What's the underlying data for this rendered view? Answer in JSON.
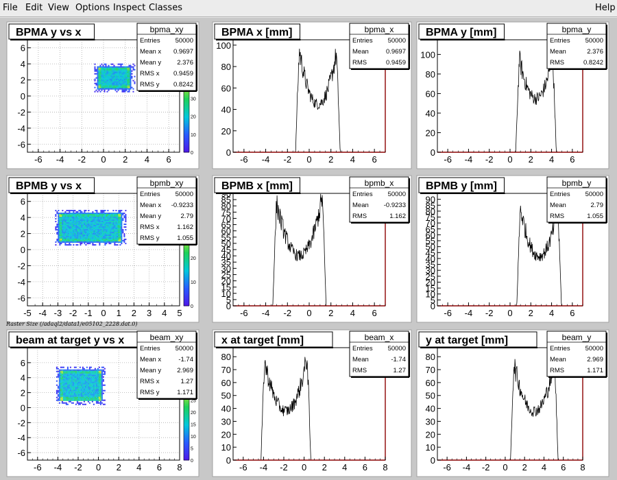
{
  "menu": {
    "file": "File",
    "edit": "Edit",
    "view": "View",
    "options": "Options",
    "inspect": "Inspect",
    "classes": "Classes",
    "help": "Help"
  },
  "caption": "Raster Size (/adaql2/data1/e05102_2228.dat.0)",
  "colors": {
    "pad_bg": "#ffffff",
    "frame": "#c8c8c8",
    "axis_red": "#8b0000",
    "hist_line": "#000000"
  },
  "chart_data": [
    {
      "type": "heatmap",
      "title": "BPMA y vs x",
      "stats_name": "bpma_xy",
      "stats": [
        [
          "Entries",
          "50000"
        ],
        [
          "Mean x",
          "0.9697"
        ],
        [
          "Mean y",
          "2.376"
        ],
        [
          "RMS x",
          "0.9459"
        ],
        [
          "RMS y",
          "0.8242"
        ]
      ],
      "xlim": [
        -7,
        7
      ],
      "ylim": [
        -7,
        7
      ],
      "xticks": [
        -6,
        -4,
        -2,
        0,
        2,
        4,
        6
      ],
      "yticks": [
        -6,
        -4,
        -2,
        0,
        2,
        4,
        6
      ],
      "blob": {
        "x": [
          -0.6,
          2.5
        ],
        "y": [
          0.9,
          3.7
        ]
      },
      "zticks": [
        0,
        10,
        20,
        30
      ],
      "zmax": 40,
      "grid": true
    },
    {
      "type": "line",
      "title": "BPMA x [mm]",
      "stats_name": "bpma_x",
      "stats": [
        [
          "Entries",
          "50000"
        ],
        [
          "Mean",
          "0.9697"
        ],
        [
          "RMS",
          "0.9459"
        ]
      ],
      "xlim": [
        -7,
        7
      ],
      "ylim": [
        0,
        105
      ],
      "xticks": [
        -6,
        -4,
        -2,
        0,
        2,
        4,
        6
      ],
      "yticks": [
        0,
        20,
        40,
        60,
        80,
        100
      ],
      "edges": [
        -0.9,
        2.5
      ],
      "peaks": [
        95,
        92
      ],
      "trough": 45
    },
    {
      "type": "line",
      "title": "BPMA y [mm]",
      "stats_name": "bpma_y",
      "stats": [
        [
          "Entries",
          "50000"
        ],
        [
          "Mean",
          "2.376"
        ],
        [
          "RMS",
          "0.8242"
        ]
      ],
      "xlim": [
        -7,
        7
      ],
      "ylim": [
        0,
        115
      ],
      "xticks": [
        -6,
        -4,
        -2,
        0,
        2,
        4,
        6
      ],
      "yticks": [
        0,
        20,
        40,
        60,
        80,
        100
      ],
      "edges": [
        0.9,
        4.1
      ],
      "peaks": [
        95,
        98
      ],
      "trough": 55
    },
    {
      "type": "heatmap",
      "title": "BPMB y vs x",
      "stats_name": "bpmb_xy",
      "stats": [
        [
          "Entries",
          "50000"
        ],
        [
          "Mean x",
          "-0.9233"
        ],
        [
          "Mean y",
          "2.79"
        ],
        [
          "RMS x",
          "1.162"
        ],
        [
          "RMS y",
          "1.055"
        ]
      ],
      "xlim": [
        -5,
        5
      ],
      "ylim": [
        -7,
        7
      ],
      "xticks": [
        -5,
        -4,
        -3,
        -2,
        -1,
        0,
        1,
        2,
        3,
        4,
        5
      ],
      "yticks": [
        -6,
        -4,
        -2,
        0,
        2,
        4,
        6
      ],
      "blob": {
        "x": [
          -3.0,
          1.2
        ],
        "y": [
          1.0,
          4.6
        ]
      },
      "zticks": [
        0,
        10,
        20
      ],
      "zmax": 30,
      "grid": true
    },
    {
      "type": "line",
      "title": "BPMB x [mm]",
      "stats_name": "bpmb_x",
      "stats": [
        [
          "Entries",
          "50000"
        ],
        [
          "Mean",
          "-0.9233"
        ],
        [
          "RMS",
          "1.162"
        ]
      ],
      "xlim": [
        -7,
        7
      ],
      "ylim": [
        0,
        90
      ],
      "xticks": [
        -6,
        -4,
        -2,
        0,
        2,
        4,
        6
      ],
      "yticks": [
        0,
        5,
        10,
        15,
        20,
        25,
        30,
        35,
        40,
        45,
        50,
        55,
        60,
        65,
        70,
        75,
        80,
        85,
        90
      ],
      "edges": [
        -3.0,
        1.2
      ],
      "peaks": [
        82,
        87
      ],
      "trough": 40
    },
    {
      "type": "line",
      "title": "BPMB y [mm]",
      "stats_name": "bpmb_y",
      "stats": [
        [
          "Entries",
          "50000"
        ],
        [
          "Mean",
          "2.79"
        ],
        [
          "RMS",
          "1.055"
        ]
      ],
      "xlim": [
        -7,
        7
      ],
      "ylim": [
        0,
        95
      ],
      "xticks": [
        -6,
        -4,
        -2,
        0,
        2,
        4,
        6
      ],
      "yticks": [
        0,
        5,
        10,
        15,
        20,
        25,
        30,
        35,
        40,
        45,
        50,
        55,
        60,
        65,
        70,
        75,
        80,
        85,
        90
      ],
      "edges": [
        1.0,
        4.6
      ],
      "peaks": [
        83,
        80
      ],
      "trough": 42
    },
    {
      "type": "heatmap",
      "title": "beam at target y vs x",
      "stats_name": "beam_xy",
      "stats": [
        [
          "Entries",
          "50000"
        ],
        [
          "Mean x",
          "-1.74"
        ],
        [
          "Mean y",
          "2.969"
        ],
        [
          "RMS x",
          "1.27"
        ],
        [
          "RMS y",
          "1.171"
        ]
      ],
      "xlim": [
        -7,
        8
      ],
      "ylim": [
        -7,
        8
      ],
      "xticks": [
        -6,
        -4,
        -2,
        0,
        2,
        4,
        6,
        8
      ],
      "yticks": [
        -6,
        -4,
        -2,
        0,
        2,
        4,
        6
      ],
      "blob": {
        "x": [
          -3.9,
          0.3
        ],
        "y": [
          0.9,
          5.1
        ]
      },
      "zticks": [
        0,
        5,
        10,
        15,
        20,
        25
      ],
      "zmax": 30,
      "grid": true
    },
    {
      "type": "line",
      "title": "x at target [mm]",
      "stats_name": "beam_x",
      "stats": [
        [
          "Entries",
          "50000"
        ],
        [
          "Mean",
          "-1.74"
        ],
        [
          "RMS",
          "1.27"
        ]
      ],
      "xlim": [
        -7,
        8
      ],
      "ylim": [
        0,
        87
      ],
      "xticks": [
        -6,
        -4,
        -2,
        0,
        2,
        4,
        6,
        8
      ],
      "yticks": [
        0,
        10,
        20,
        30,
        40,
        50,
        60,
        70,
        80
      ],
      "edges": [
        -3.9,
        0.3
      ],
      "peaks": [
        76,
        80
      ],
      "trough": 38
    },
    {
      "type": "line",
      "title": "y at target [mm]",
      "stats_name": "beam_y",
      "stats": [
        [
          "Entries",
          "50000"
        ],
        [
          "Mean",
          "2.969"
        ],
        [
          "RMS",
          "1.171"
        ]
      ],
      "xlim": [
        -7,
        8
      ],
      "ylim": [
        0,
        87
      ],
      "xticks": [
        -6,
        -4,
        -2,
        0,
        2,
        4,
        6,
        8
      ],
      "yticks": [
        0,
        10,
        20,
        30,
        40,
        50,
        60,
        70,
        80
      ],
      "edges": [
        0.9,
        5.1
      ],
      "peaks": [
        75,
        76
      ],
      "trough": 38
    }
  ]
}
